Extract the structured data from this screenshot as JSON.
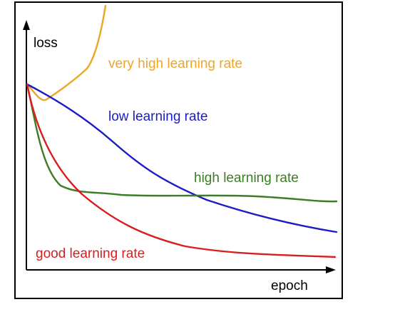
{
  "chart_data": {
    "type": "line",
    "ylabel": "loss",
    "xlabel": "epoch",
    "series": [
      {
        "name": "very high learning rate",
        "color": "#eea626"
      },
      {
        "name": "low learning rate",
        "color": "#1c1cc4"
      },
      {
        "name": "high learning rate",
        "color": "#3b7d24"
      },
      {
        "name": "good learning rate",
        "color": "#d81e1e"
      }
    ]
  }
}
